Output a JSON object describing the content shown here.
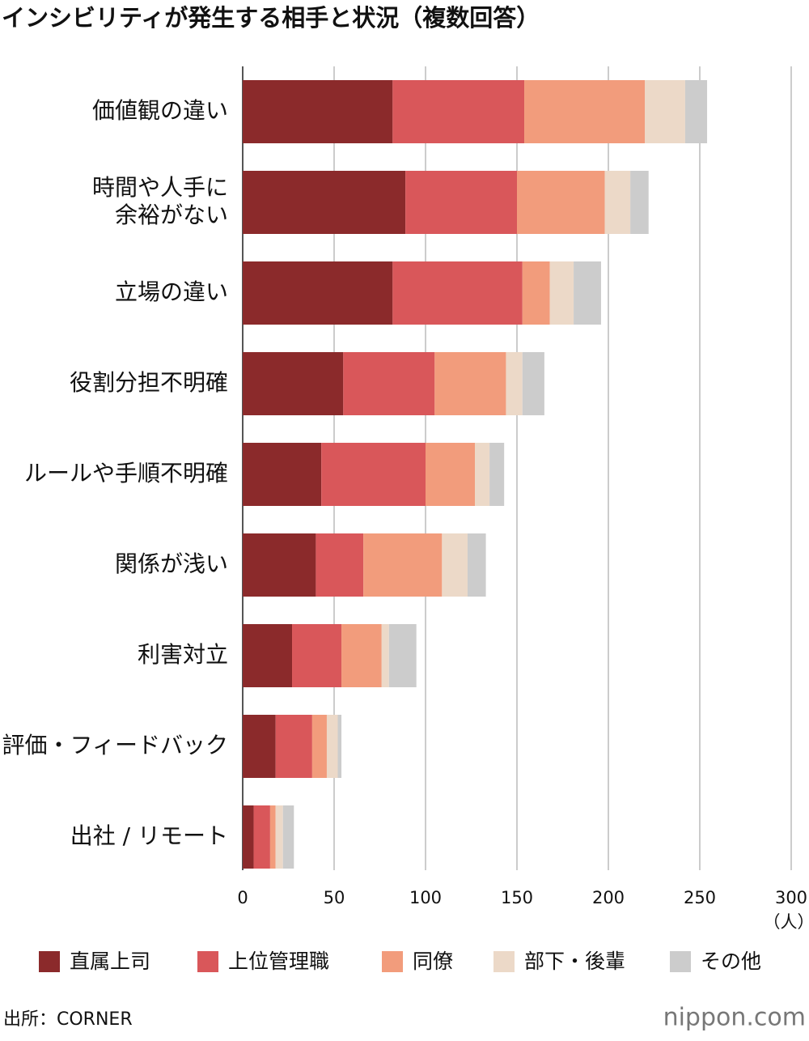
{
  "chart_data": {
    "type": "stacked-bar-horizontal",
    "title": "インシビリティが発生する相手と状況（複数回答）",
    "categories": [
      "価値観の違い",
      "時間や人手に\n余裕がない",
      "立場の違い",
      "役割分担不明確",
      "ルールや手順不明確",
      "関係が浅い",
      "利害対立",
      "評価・フィードバック",
      "出社 / リモート"
    ],
    "series": [
      {
        "name": "直属上司",
        "color": "#8b2a2b",
        "values": [
          82,
          89,
          82,
          55,
          43,
          40,
          27,
          18,
          6
        ]
      },
      {
        "name": "上位管理職",
        "color": "#d9575a",
        "values": [
          72,
          61,
          71,
          50,
          57,
          26,
          27,
          20,
          9
        ]
      },
      {
        "name": "同僚",
        "color": "#f29c7c",
        "values": [
          66,
          48,
          15,
          39,
          27,
          43,
          22,
          8,
          3
        ]
      },
      {
        "name": "部下・後輩",
        "color": "#ecd9c8",
        "values": [
          22,
          14,
          13,
          9,
          8,
          14,
          4,
          6,
          4
        ]
      },
      {
        "name": "その他",
        "color": "#cccccc",
        "values": [
          12,
          10,
          15,
          12,
          8,
          10,
          15,
          2,
          6
        ]
      }
    ],
    "xlim": [
      0,
      300
    ],
    "xticks": [
      0,
      50,
      100,
      150,
      200,
      250,
      300
    ],
    "x_unit_label": "（人）",
    "grid": true,
    "source": "出所：CORNER",
    "logo": "nippon.com"
  }
}
